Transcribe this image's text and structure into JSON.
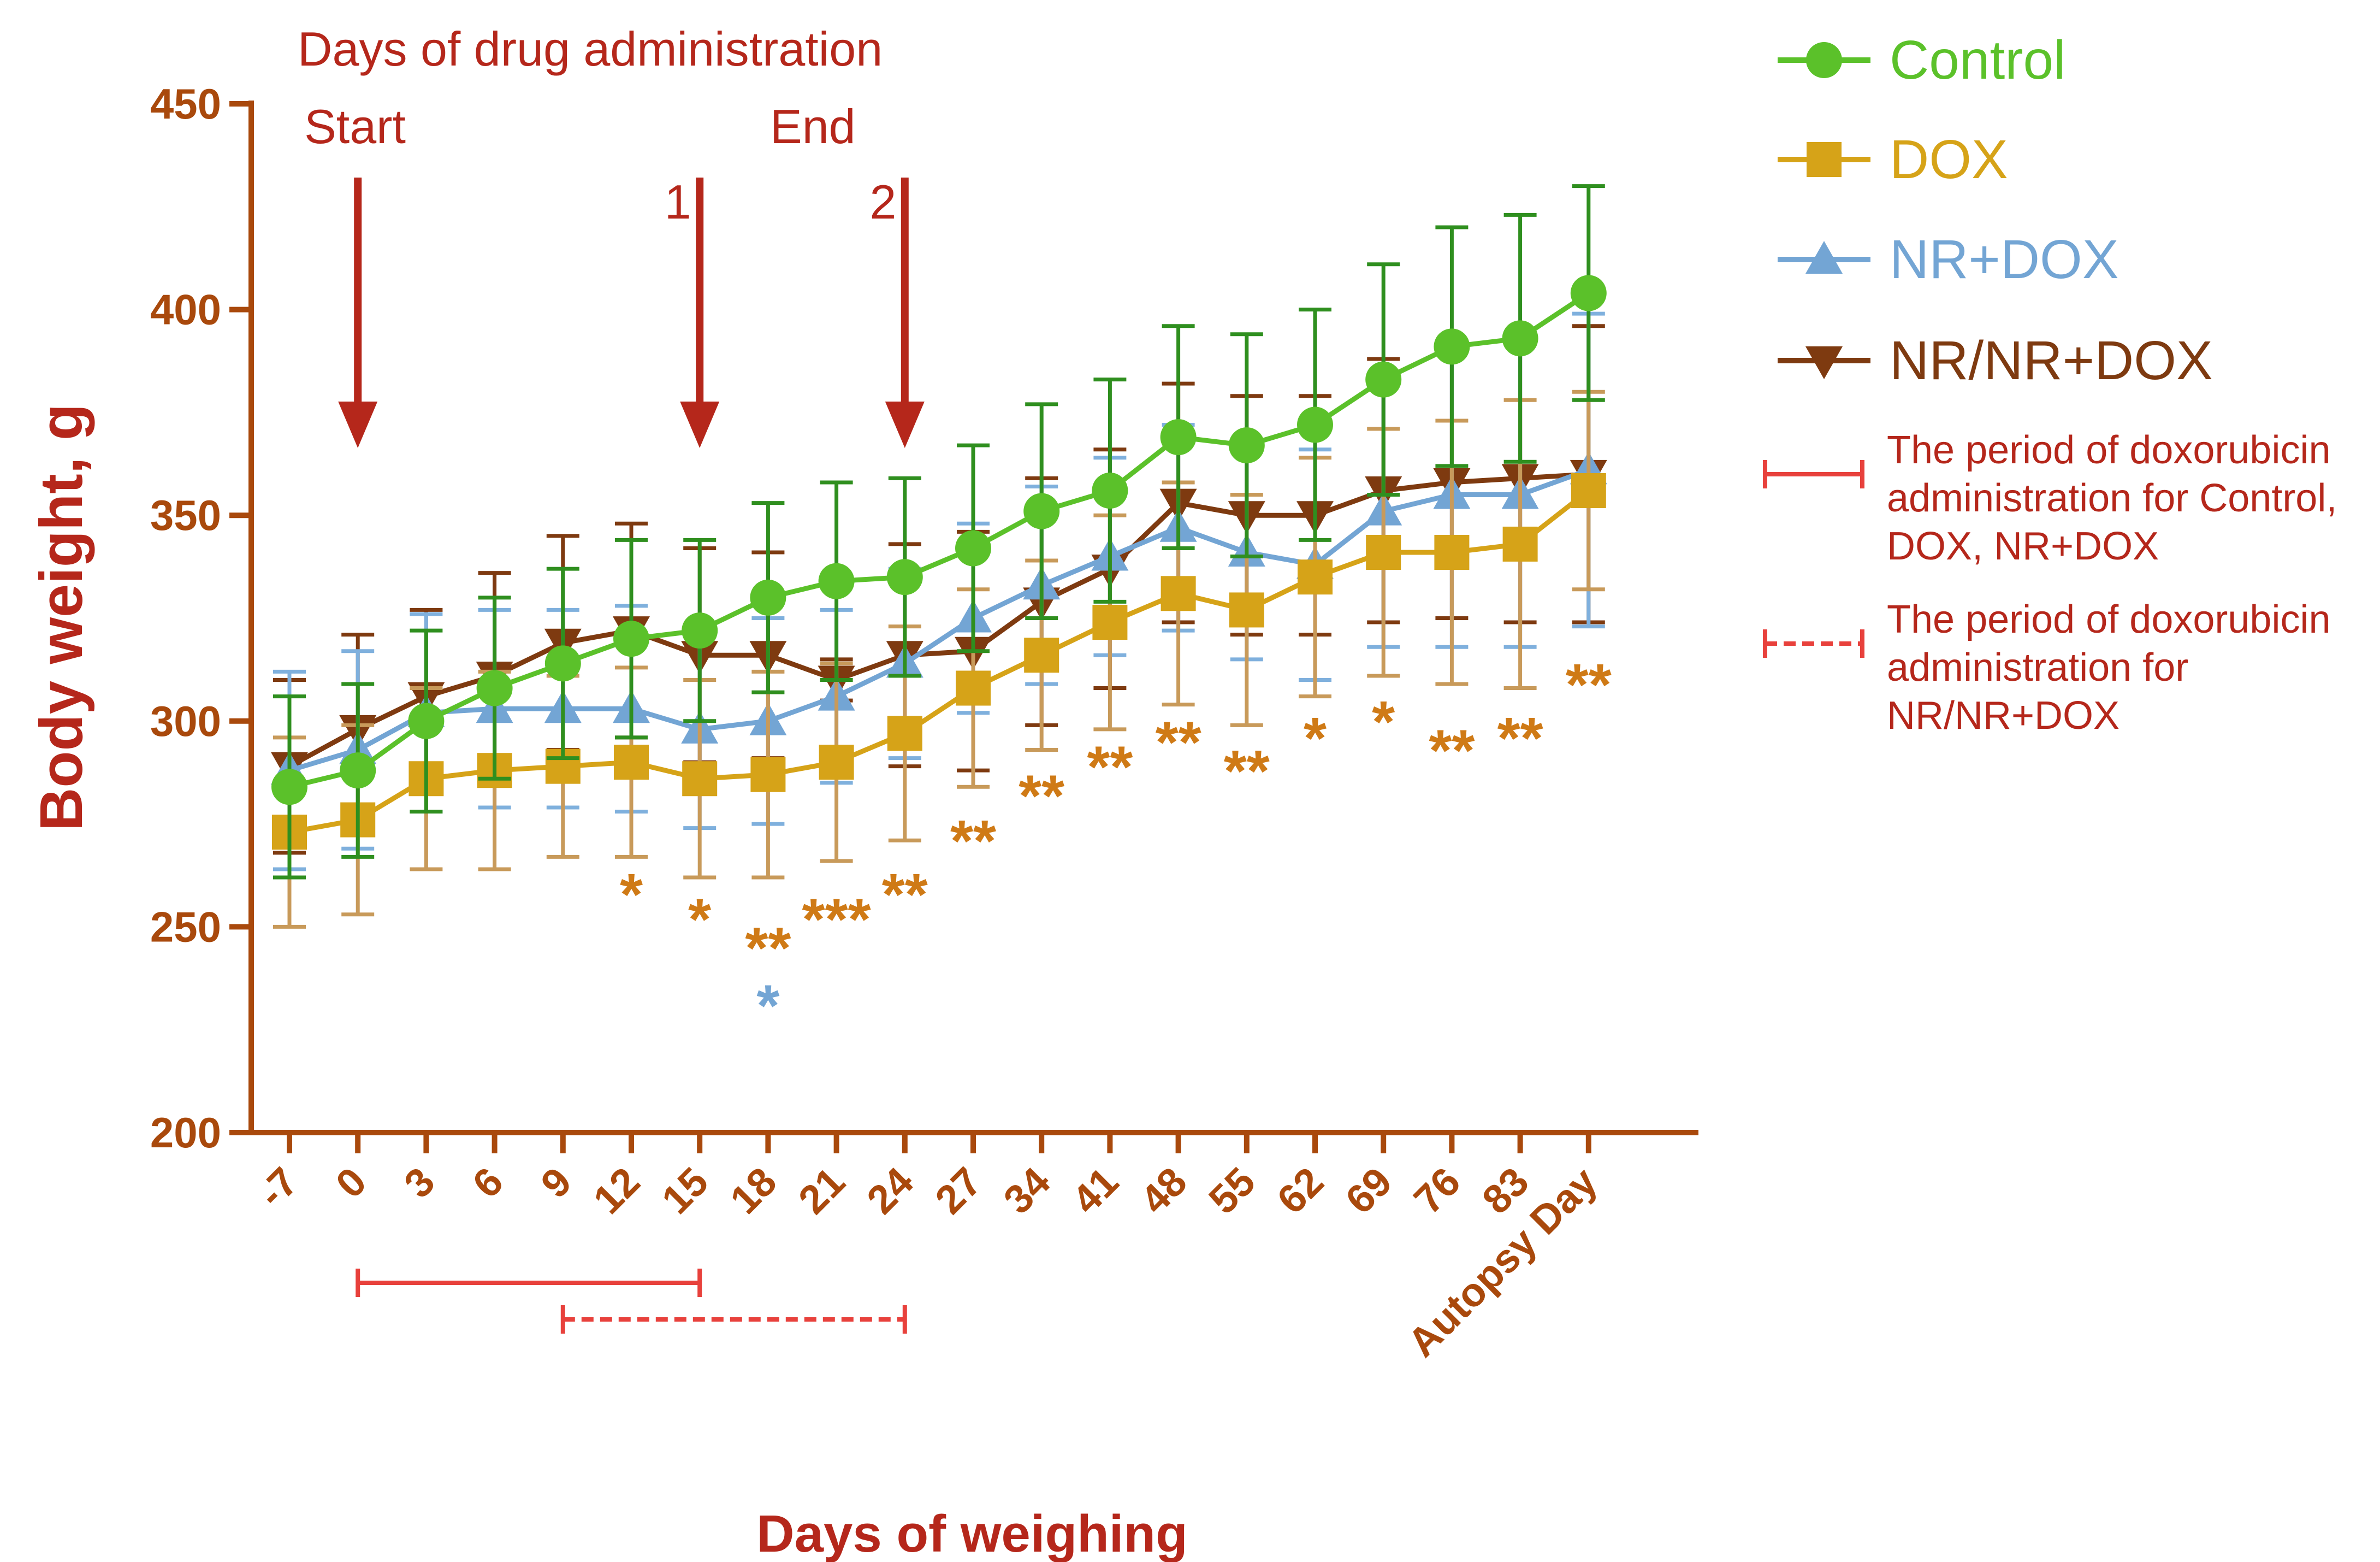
{
  "colors": {
    "axis": "#a9490c",
    "title": "#b5271b",
    "arrow": "#b5271b",
    "period": "#e8413c",
    "control": "#5bc12a",
    "control_err": "#2f8f1f",
    "dox": "#d6a318",
    "dox_err": "#c89a5a",
    "nrdox": "#73a5d4",
    "nrdox_err": "#7fb0dd",
    "nrnrdox": "#7e3a10",
    "nrnrdox_err": "#7e3a10",
    "star_orange": "#cf7a16",
    "star_blue": "#73a5d4"
  },
  "chart_data": {
    "type": "line",
    "xlabel": "Days of weighing",
    "ylabel": "Body weight, g",
    "ylim": [
      200,
      450
    ],
    "yticks": [
      200,
      250,
      300,
      350,
      400,
      450
    ],
    "categories": [
      "-7",
      "0",
      "3",
      "6",
      "9",
      "12",
      "15",
      "18",
      "21",
      "24",
      "27",
      "34",
      "41",
      "48",
      "55",
      "62",
      "69",
      "76",
      "83",
      "Autopsy Day"
    ],
    "series": [
      {
        "name": "Control",
        "marker": "circle",
        "values": [
          284,
          288,
          300,
          308,
          314,
          320,
          322,
          330,
          334,
          335,
          342,
          351,
          356,
          369,
          367,
          372,
          383,
          391,
          393,
          404
        ],
        "errors": [
          22,
          21,
          22,
          22,
          23,
          24,
          22,
          23,
          24,
          24,
          25,
          26,
          27,
          27,
          27,
          28,
          28,
          29,
          30,
          26
        ]
      },
      {
        "name": "DOX",
        "marker": "square",
        "values": [
          273,
          276,
          286,
          288,
          289,
          290,
          286,
          287,
          290,
          297,
          308,
          316,
          324,
          331,
          327,
          335,
          341,
          341,
          343,
          356
        ],
        "errors": [
          23,
          23,
          22,
          24,
          22,
          23,
          24,
          25,
          24,
          26,
          24,
          23,
          26,
          27,
          28,
          29,
          30,
          32,
          35,
          24
        ]
      },
      {
        "name": "NR+DOX",
        "marker": "triangle-up",
        "values": [
          288,
          293,
          302,
          303,
          303,
          303,
          298,
          300,
          306,
          314,
          325,
          333,
          340,
          347,
          341,
          338,
          351,
          355,
          355,
          361
        ],
        "errors": [
          24,
          24,
          24,
          24,
          24,
          25,
          24,
          25,
          21,
          23,
          23,
          24,
          24,
          25,
          26,
          28,
          33,
          37,
          37,
          38
        ]
      },
      {
        "name": "NR/NR+DOX",
        "marker": "triangle-down",
        "values": [
          289,
          298,
          306,
          311,
          319,
          322,
          316,
          316,
          310,
          316,
          317,
          329,
          337,
          353,
          350,
          350,
          356,
          358,
          359,
          360
        ],
        "errors": [
          21,
          23,
          21,
          25,
          26,
          26,
          26,
          25,
          5,
          27,
          29,
          30,
          29,
          29,
          29,
          29,
          32,
          33,
          35,
          36
        ]
      }
    ],
    "significance": [
      {
        "category": "12",
        "text": "*",
        "y": 258,
        "series": "DOX"
      },
      {
        "category": "15",
        "text": "*",
        "y": 252,
        "series": "DOX"
      },
      {
        "category": "18",
        "text": "**",
        "y": 245,
        "series": "DOX"
      },
      {
        "category": "18",
        "text": "*",
        "y": 231,
        "series": "NR+DOX"
      },
      {
        "category": "21",
        "text": "***",
        "y": 252,
        "series": "DOX"
      },
      {
        "category": "24",
        "text": "**",
        "y": 258,
        "series": "DOX"
      },
      {
        "category": "27",
        "text": "**",
        "y": 271,
        "series": "DOX"
      },
      {
        "category": "34",
        "text": "**",
        "y": 282,
        "series": "DOX"
      },
      {
        "category": "41",
        "text": "**",
        "y": 289,
        "series": "DOX"
      },
      {
        "category": "48",
        "text": "**",
        "y": 295,
        "series": "DOX"
      },
      {
        "category": "55",
        "text": "**",
        "y": 288,
        "series": "DOX"
      },
      {
        "category": "62",
        "text": "*",
        "y": 296,
        "series": "DOX"
      },
      {
        "category": "69",
        "text": "*",
        "y": 300,
        "series": "DOX"
      },
      {
        "category": "76",
        "text": "**",
        "y": 293,
        "series": "DOX"
      },
      {
        "category": "83",
        "text": "**",
        "y": 296,
        "series": "DOX"
      },
      {
        "category": "Autopsy Day",
        "text": "**",
        "y": 309,
        "series": "DOX"
      }
    ],
    "administration_title": "Days of drug administration",
    "arrows": [
      {
        "label": "Start",
        "category": "0"
      },
      {
        "label": "1",
        "category": "15"
      },
      {
        "label": "2",
        "category": "24"
      }
    ],
    "end_label": "End",
    "periods": [
      {
        "style": "solid",
        "from": "0",
        "to": "15",
        "legend": [
          "The period of doxorubicin",
          "administration for Control,",
          "DOX, NR+DOX"
        ]
      },
      {
        "style": "dashed",
        "from": "9",
        "to": "24",
        "legend": [
          "The period of doxorubicin",
          "administration for",
          "NR/NR+DOX"
        ]
      }
    ]
  }
}
